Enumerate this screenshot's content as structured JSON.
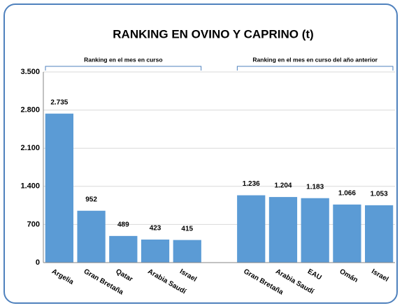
{
  "chart_data": {
    "type": "bar",
    "title": "RANKING EN OVINO Y CAPRINO (t)",
    "annotations": [
      "Ranking en el mes en curso",
      "Ranking en el mes en curso del año anterior"
    ],
    "categories": [
      "Argelia",
      "Gran Bretaña",
      "Qatar",
      "Arabia Saudí",
      "Israel",
      null,
      "Gran Bretaña",
      "Arabia Saudí",
      "EAU",
      "Omán",
      "Israel"
    ],
    "values": [
      2735,
      952,
      489,
      423,
      415,
      null,
      1236,
      1204,
      1183,
      1066,
      1053
    ],
    "value_labels": [
      "2.735",
      "952",
      "489",
      "423",
      "415",
      null,
      "1.236",
      "1.204",
      "1.183",
      "1.066",
      "1.053"
    ],
    "color": "#5b9bd5",
    "ylim": [
      0,
      3500
    ],
    "yticks": [
      0,
      700,
      {
        "value": 1400,
        "label": "1.400"
      },
      {
        "value": 2100,
        "label": "2.100"
      },
      {
        "value": 2800,
        "label": "2.800"
      },
      {
        "value": 3500,
        "label": "3.500"
      }
    ],
    "grid": true
  }
}
